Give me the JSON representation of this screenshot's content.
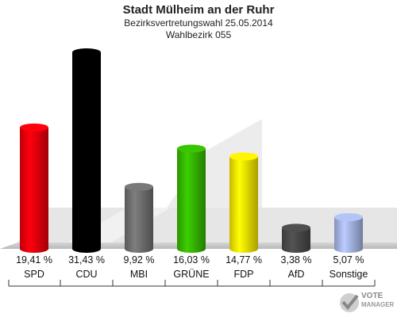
{
  "header": {
    "title": "Stadt Mülheim an der Ruhr",
    "subtitle": "Bezirksvertretungswahl 25.05.2014",
    "district": "Wahlbezirk 055"
  },
  "logo": {
    "line1": "VOTE",
    "line2": "MANAGER",
    "icon": "check-mark-icon"
  },
  "chart_data": {
    "type": "bar",
    "categories": [
      "SPD",
      "CDU",
      "MBI",
      "GRÜNE",
      "FDP",
      "AfD",
      "Sonstige"
    ],
    "values": [
      19.41,
      31.43,
      9.92,
      16.03,
      14.77,
      3.38,
      5.07
    ],
    "labels": [
      "19,41 %",
      "31,43 %",
      "9,92 %",
      "16,03 %",
      "14,77 %",
      "3,38 %",
      "5,07 %"
    ],
    "colors": [
      "#e8000b",
      "#000000",
      "#6e6e6e",
      "#34b400",
      "#f5e000",
      "#484848",
      "#a3b2e0"
    ],
    "title": "Stadt Mülheim an der Ruhr",
    "ylim": [
      0,
      31.43
    ],
    "grid": false,
    "legend": "none"
  }
}
